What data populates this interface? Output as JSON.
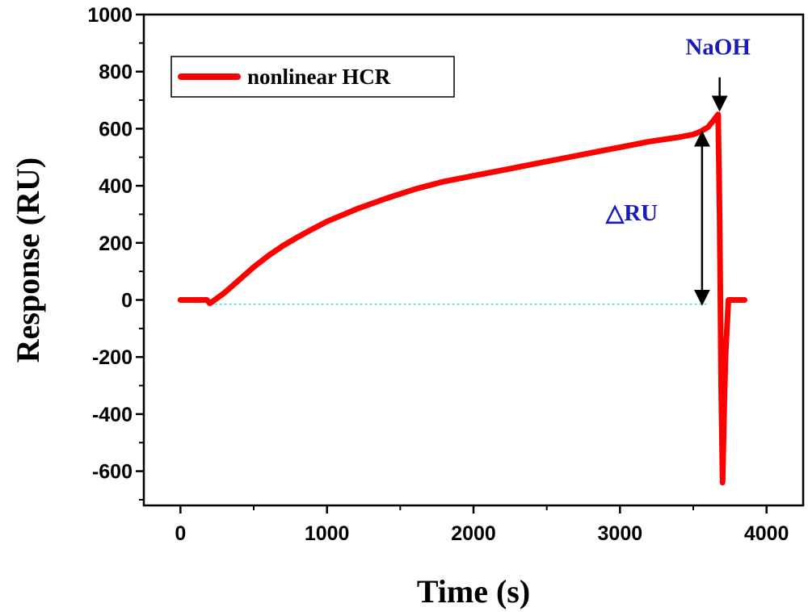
{
  "chart_data": {
    "type": "line",
    "xlabel": "Time (s)",
    "ylabel": "Response (RU)",
    "xlim": [
      -250,
      4250
    ],
    "ylim": [
      -720,
      1000
    ],
    "x_ticks": [
      0,
      1000,
      2000,
      3000,
      4000
    ],
    "x_tick_labels": [
      "0",
      "1000",
      "2000",
      "3000",
      "4000"
    ],
    "x_minor_ticks": [
      500,
      1500,
      2500,
      3500
    ],
    "y_ticks": [
      -600,
      -400,
      -200,
      0,
      200,
      400,
      600,
      800,
      1000
    ],
    "y_tick_labels": [
      "-600",
      "-400",
      "-200",
      "0",
      "200",
      "400",
      "600",
      "800",
      "1000"
    ],
    "y_minor_ticks": [
      -700,
      -500,
      -300,
      -100,
      100,
      300,
      500,
      700,
      900
    ],
    "grid": false,
    "legend": {
      "placement": "top-left",
      "entries": [
        "nonlinear HCR"
      ]
    },
    "series": [
      {
        "name": "nonlinear HCR",
        "color": "#ff0000",
        "x": [
          0,
          100,
          180,
          200,
          220,
          300,
          400,
          500,
          600,
          700,
          800,
          900,
          1000,
          1200,
          1400,
          1600,
          1800,
          2000,
          2200,
          2400,
          2600,
          2800,
          3000,
          3200,
          3400,
          3500,
          3550,
          3600,
          3640,
          3670,
          3680,
          3690,
          3700,
          3710,
          3720,
          3740,
          3760,
          3800,
          3850
        ],
        "y": [
          0,
          0,
          0,
          -12,
          -5,
          25,
          70,
          115,
          155,
          190,
          220,
          248,
          275,
          318,
          355,
          388,
          415,
          435,
          455,
          475,
          495,
          515,
          535,
          555,
          570,
          580,
          590,
          605,
          630,
          650,
          300,
          -300,
          -640,
          -400,
          -200,
          0,
          0,
          0,
          0
        ]
      }
    ],
    "baseline": {
      "y": -15,
      "x_start": 200,
      "x_end": 3600,
      "color": "#40e0d0"
    },
    "annotations": [
      {
        "text": "NaOH",
        "x": 3680,
        "y_text": 860,
        "arrow_from_y": 780,
        "arrow_to_y": 665
      },
      {
        "text": "△RU",
        "x": 3560,
        "y_text": 290,
        "arrow_from_y": -15,
        "arrow_to_y": 588
      }
    ]
  }
}
